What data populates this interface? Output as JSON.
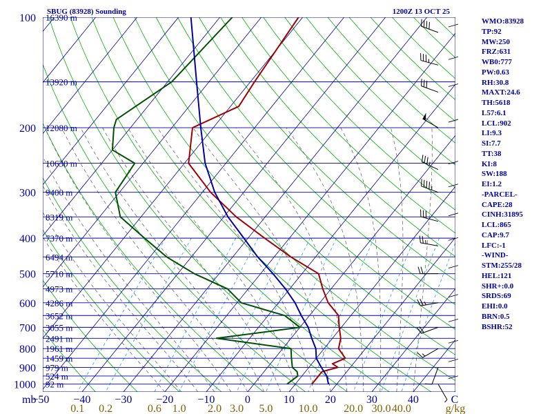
{
  "chart_data": {
    "type": "line",
    "title": "SBUG (83928) Sounding",
    "time_label": "1200Z 13 OCT 25",
    "pressure_axis": {
      "unit_label": "mb",
      "ticks": [
        100,
        200,
        300,
        400,
        500,
        600,
        700,
        800,
        900,
        1000
      ],
      "range": [
        1050,
        100
      ]
    },
    "temperature_axis": {
      "ticks": [
        -50,
        -40,
        -30,
        -20,
        -10,
        0,
        10,
        20,
        30,
        40
      ],
      "range": [
        -50,
        50
      ]
    },
    "mixing_ratio_axis": {
      "unit_label": "g/kg",
      "ticks": [
        "0.1",
        "0.2",
        "0.6",
        "1.0",
        "2.0",
        "3.0",
        "5.0",
        "10.0",
        "20.0",
        "30.0",
        "40.0"
      ]
    },
    "height_labels": [
      {
        "p": 100,
        "text": "16390 m"
      },
      {
        "p": 150,
        "text": "13920 m"
      },
      {
        "p": 200,
        "text": "12080 m"
      },
      {
        "p": 250,
        "text": "10630 m"
      },
      {
        "p": 300,
        "text": "9400 m"
      },
      {
        "p": 350,
        "text": "8319 m"
      },
      {
        "p": 400,
        "text": "7370 m"
      },
      {
        "p": 450,
        "text": "6494 m"
      },
      {
        "p": 500,
        "text": "5710 m"
      },
      {
        "p": 550,
        "text": "4973 m"
      },
      {
        "p": 600,
        "text": "4286 m"
      },
      {
        "p": 650,
        "text": "3652 m"
      },
      {
        "p": 700,
        "text": "3055 m"
      },
      {
        "p": 750,
        "text": "2491 m"
      },
      {
        "p": 800,
        "text": "1961 m"
      },
      {
        "p": 850,
        "text": "1459 m"
      },
      {
        "p": 900,
        "text": "979 m"
      },
      {
        "p": 950,
        "text": "524 m"
      },
      {
        "p": 1000,
        "text": "92 m"
      }
    ],
    "series": [
      {
        "role": "temperature",
        "color": "#a00000",
        "points": [
          [
            100,
            -61
          ],
          [
            150,
            -59
          ],
          [
            175,
            -58
          ],
          [
            200,
            -65
          ],
          [
            250,
            -59
          ],
          [
            300,
            -48
          ],
          [
            350,
            -37
          ],
          [
            400,
            -26
          ],
          [
            450,
            -16
          ],
          [
            500,
            -6
          ],
          [
            550,
            -2
          ],
          [
            600,
            2
          ],
          [
            650,
            7
          ],
          [
            700,
            9.5
          ],
          [
            750,
            12
          ],
          [
            800,
            13.5
          ],
          [
            850,
            17
          ],
          [
            880,
            15
          ],
          [
            900,
            17
          ],
          [
            925,
            14
          ],
          [
            950,
            14
          ],
          [
            1000,
            14
          ]
        ]
      },
      {
        "role": "dewpoint",
        "color": "#005000",
        "points": [
          [
            100,
            -77
          ],
          [
            150,
            -79
          ],
          [
            190,
            -85
          ],
          [
            200,
            -84
          ],
          [
            230,
            -80
          ],
          [
            250,
            -72
          ],
          [
            300,
            -71
          ],
          [
            350,
            -65
          ],
          [
            400,
            -55
          ],
          [
            450,
            -46
          ],
          [
            500,
            -36
          ],
          [
            550,
            -25
          ],
          [
            600,
            -19
          ],
          [
            650,
            -6
          ],
          [
            700,
            0
          ],
          [
            750,
            -18
          ],
          [
            800,
            2
          ],
          [
            850,
            4
          ],
          [
            900,
            6
          ],
          [
            925,
            8
          ],
          [
            950,
            9
          ],
          [
            1000,
            8
          ]
        ]
      },
      {
        "role": "parcel",
        "color": "#0000a0",
        "points": [
          [
            100,
            -87
          ],
          [
            150,
            -73
          ],
          [
            200,
            -63
          ],
          [
            250,
            -55
          ],
          [
            300,
            -47
          ],
          [
            350,
            -39
          ],
          [
            400,
            -31
          ],
          [
            450,
            -24
          ],
          [
            500,
            -17
          ],
          [
            550,
            -11
          ],
          [
            600,
            -6
          ],
          [
            650,
            -2
          ],
          [
            700,
            2
          ],
          [
            750,
            5
          ],
          [
            800,
            8
          ],
          [
            850,
            10
          ],
          [
            900,
            13
          ],
          [
            950,
            16
          ],
          [
            1000,
            18
          ]
        ]
      }
    ],
    "indices": [
      "WMO:83928",
      "TP:92",
      "MW:250",
      "FRZ:631",
      "WB0:777",
      "PW:0.63",
      "RH:30.8",
      "MAXT:24.6",
      "TH:5618",
      "L57:6.1",
      "LCL:902",
      "LI:9.3",
      "SI:7.7",
      "TT:38",
      "KI:8",
      "SW:188",
      "EI:1.2",
      "-PARCEL-",
      "CAPE:28",
      "CINH:31895",
      "LCL:865",
      "CAP:9.7",
      "LFC:-1",
      "-WIND-",
      "STM:255/28",
      "HEL:121",
      "SHR+:0.0",
      "SRDS:69",
      "EHI:0.0",
      "BRN:0.5",
      "BSHR:52"
    ],
    "wind_barbs": [
      {
        "p": 110,
        "dir": 290,
        "kt": 40
      },
      {
        "p": 135,
        "dir": 285,
        "kt": 35
      },
      {
        "p": 160,
        "dir": 290,
        "kt": 30
      },
      {
        "p": 200,
        "dir": 300,
        "kt": 50
      },
      {
        "p": 260,
        "dir": 295,
        "kt": 35
      },
      {
        "p": 300,
        "dir": 290,
        "kt": 45
      },
      {
        "p": 360,
        "dir": 285,
        "kt": 30
      },
      {
        "p": 420,
        "dir": 280,
        "kt": 25
      },
      {
        "p": 500,
        "dir": 270,
        "kt": 20
      },
      {
        "p": 600,
        "dir": 260,
        "kt": 25
      },
      {
        "p": 700,
        "dir": 250,
        "kt": 20
      },
      {
        "p": 800,
        "dir": 240,
        "kt": 15
      },
      {
        "p": 900,
        "dir": 200,
        "kt": 10
      },
      {
        "p": 1000,
        "dir": 150,
        "kt": 5
      }
    ],
    "colors": {
      "isobars": "#0000a0",
      "isotherms": "#0000a0",
      "dry_adiabats": "#00b000",
      "moist_adiabats": "#5a5a5a",
      "mixing_ratio": "#40a8e0",
      "axis_text": "#0000a0",
      "mixing_text": "#806000"
    }
  }
}
